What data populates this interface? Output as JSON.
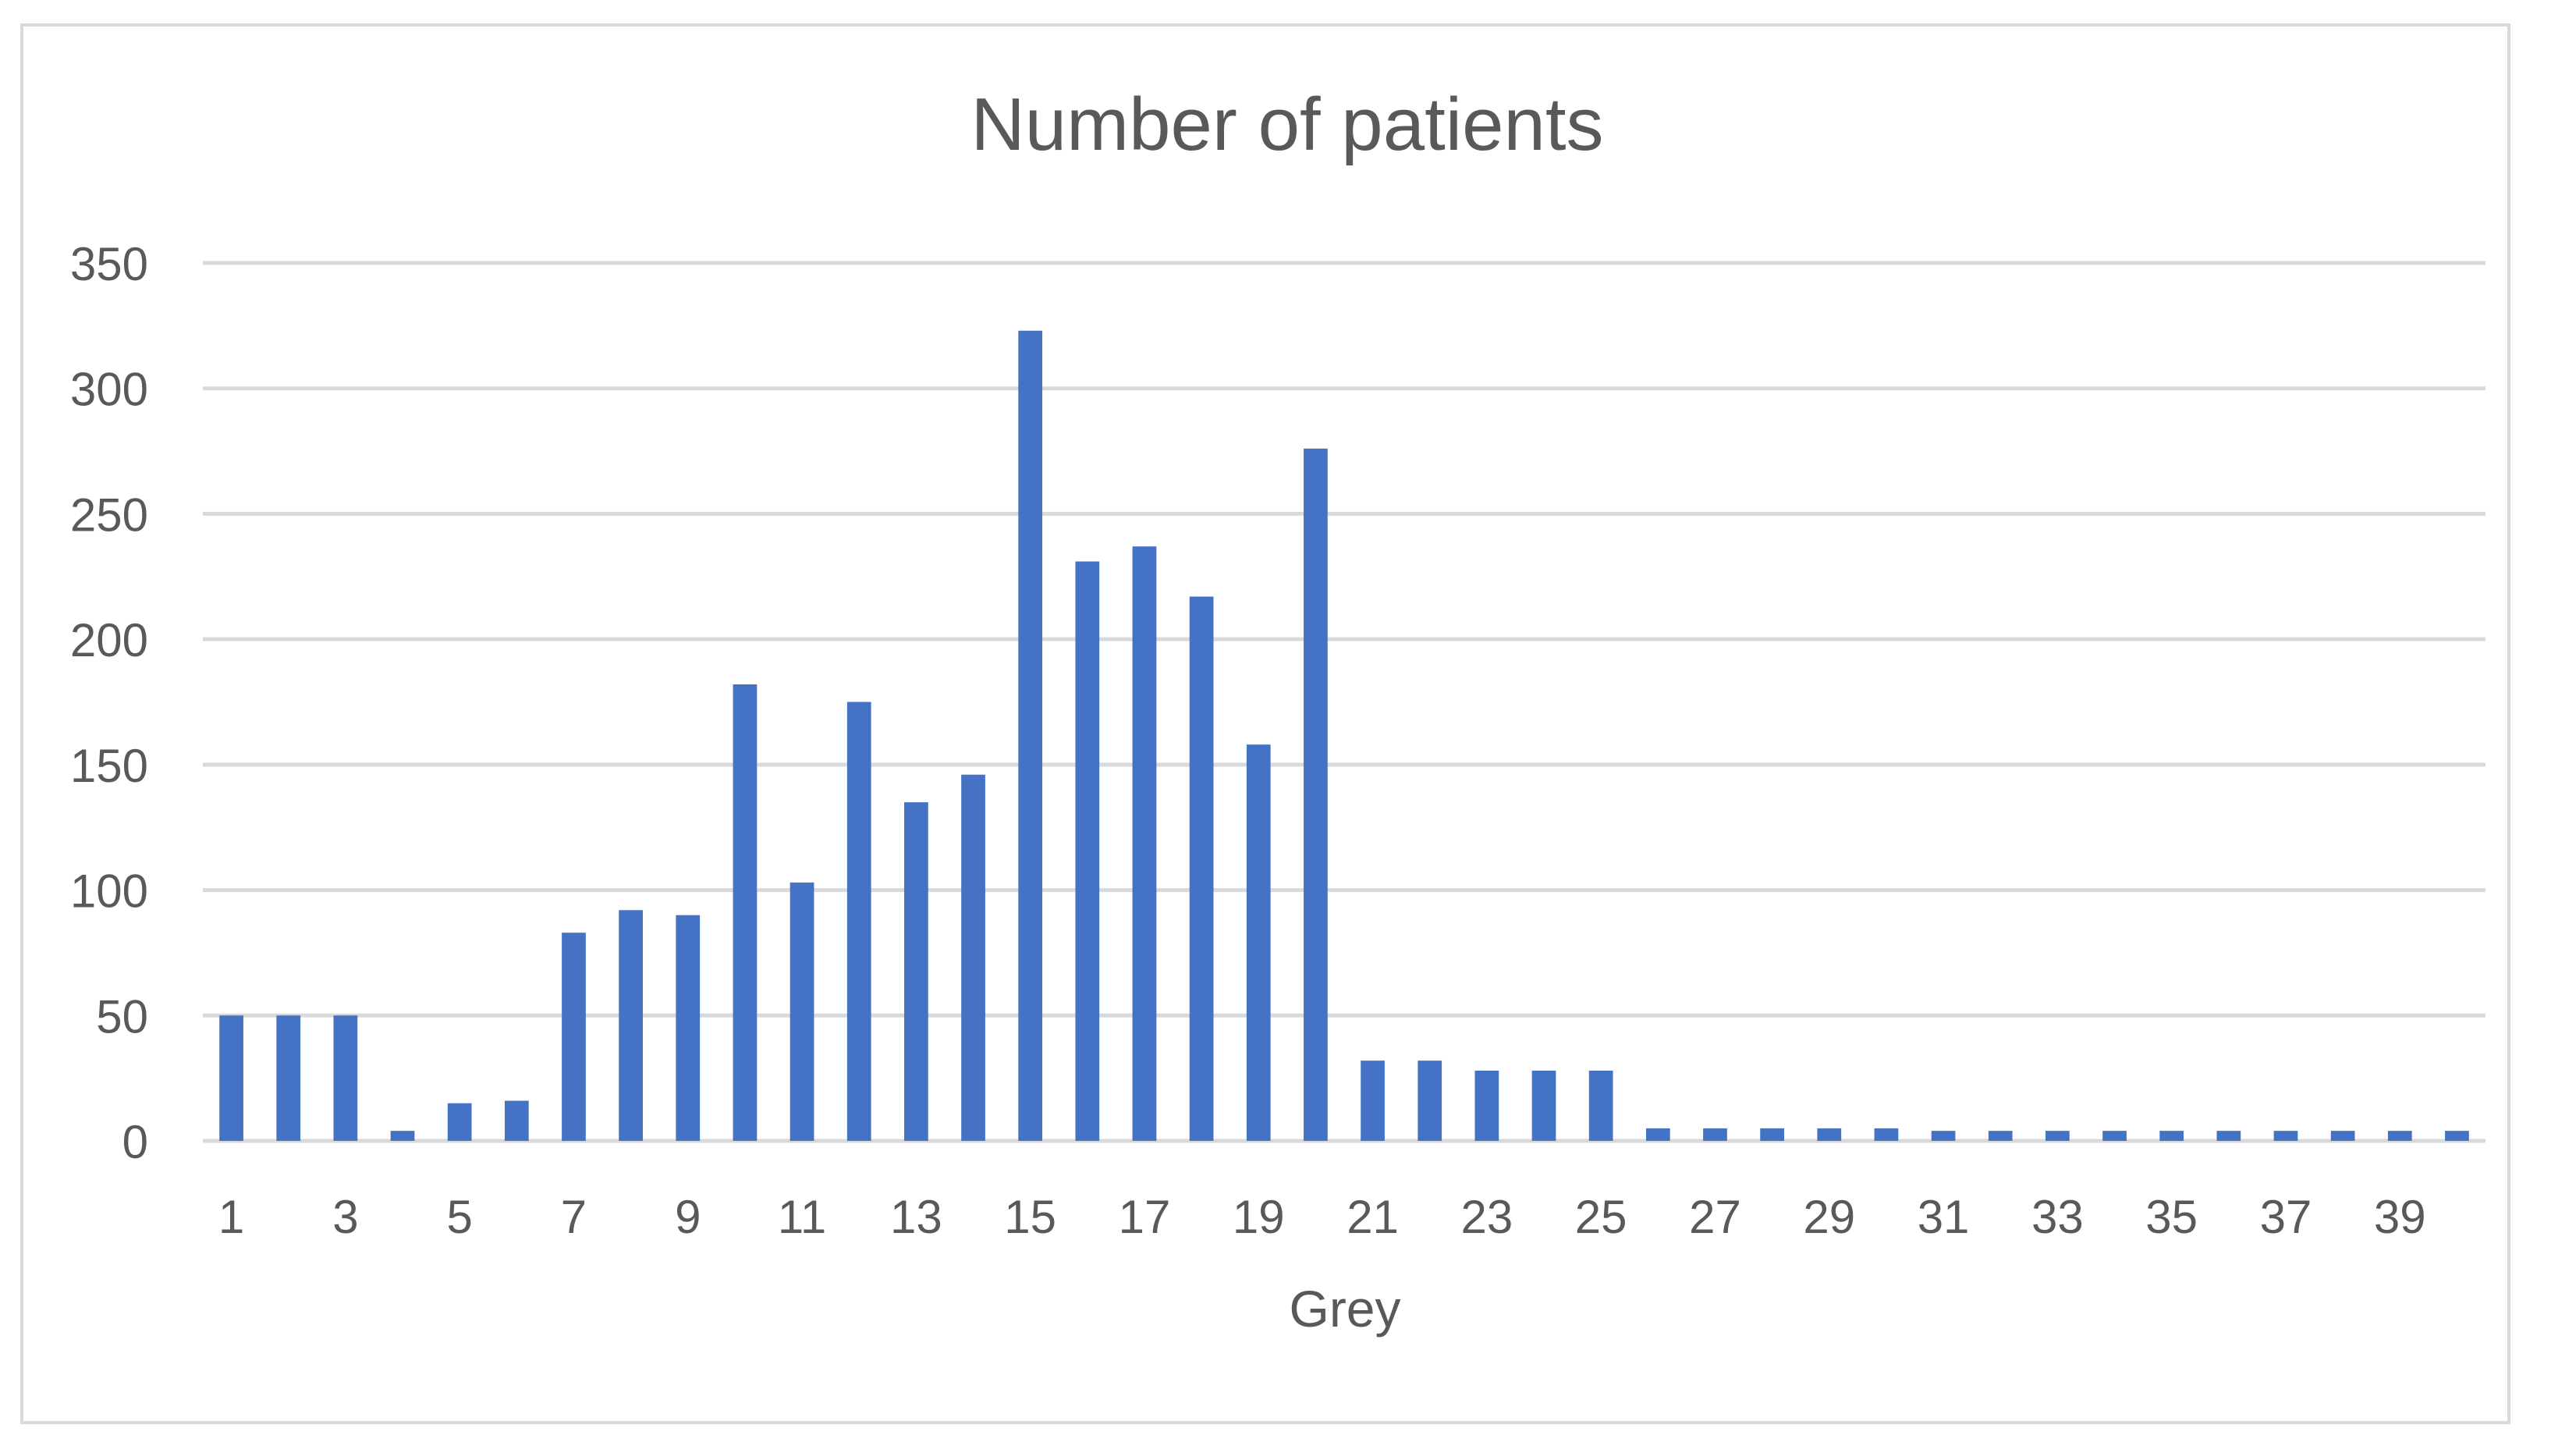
{
  "chart_data": {
    "type": "bar",
    "title": "Number of patients",
    "xlabel": "Grey",
    "ylabel": "",
    "ylim": [
      0,
      350
    ],
    "yticks": [
      0,
      50,
      100,
      150,
      200,
      250,
      300,
      350
    ],
    "grid": true,
    "legend": "none",
    "bar_color": "#4472c4",
    "categories": [
      1,
      2,
      3,
      4,
      5,
      6,
      7,
      8,
      9,
      10,
      11,
      12,
      13,
      14,
      15,
      16,
      17,
      18,
      19,
      20,
      21,
      22,
      23,
      24,
      25,
      26,
      27,
      28,
      29,
      30,
      31,
      32,
      33,
      34,
      35,
      36,
      37,
      38,
      39,
      40
    ],
    "xtick_labels": [
      "1",
      "3",
      "5",
      "7",
      "9",
      "11",
      "13",
      "15",
      "17",
      "19",
      "21",
      "23",
      "25",
      "27",
      "29",
      "31",
      "33",
      "35",
      "37",
      "39"
    ],
    "series": [
      {
        "values": [
          50,
          50,
          50,
          4,
          15,
          16,
          83,
          92,
          90,
          182,
          103,
          175,
          135,
          146,
          323,
          231,
          237,
          217,
          158,
          276,
          32,
          32,
          28,
          28,
          28,
          5,
          5,
          5,
          5,
          5,
          4,
          4,
          4,
          4,
          4,
          4,
          4,
          4,
          4,
          4
        ]
      }
    ]
  }
}
